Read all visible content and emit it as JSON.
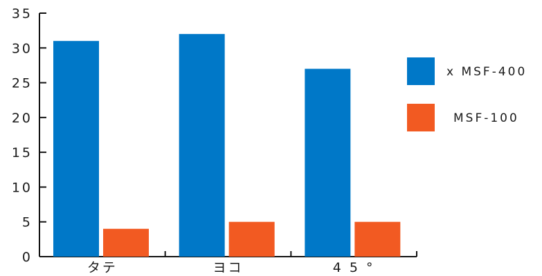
{
  "chart_data": {
    "type": "bar",
    "categories": [
      "タテ",
      "ヨコ",
      "45°"
    ],
    "category_labels": [
      "タテ",
      "ヨコ",
      "4 5 °"
    ],
    "series": [
      {
        "name": "x MSF-400",
        "values": [
          31,
          32,
          27
        ],
        "color": "#0078C8"
      },
      {
        "name": "MSF-100",
        "values": [
          4,
          5,
          5
        ],
        "color": "#F25A22"
      }
    ],
    "yticks": [
      "0",
      "5",
      "10",
      "15",
      "20",
      "25",
      "30",
      "35"
    ],
    "ylim": [
      0,
      35
    ],
    "title": "",
    "xlabel": "",
    "ylabel": "",
    "grid": false,
    "legend_position": "right"
  }
}
